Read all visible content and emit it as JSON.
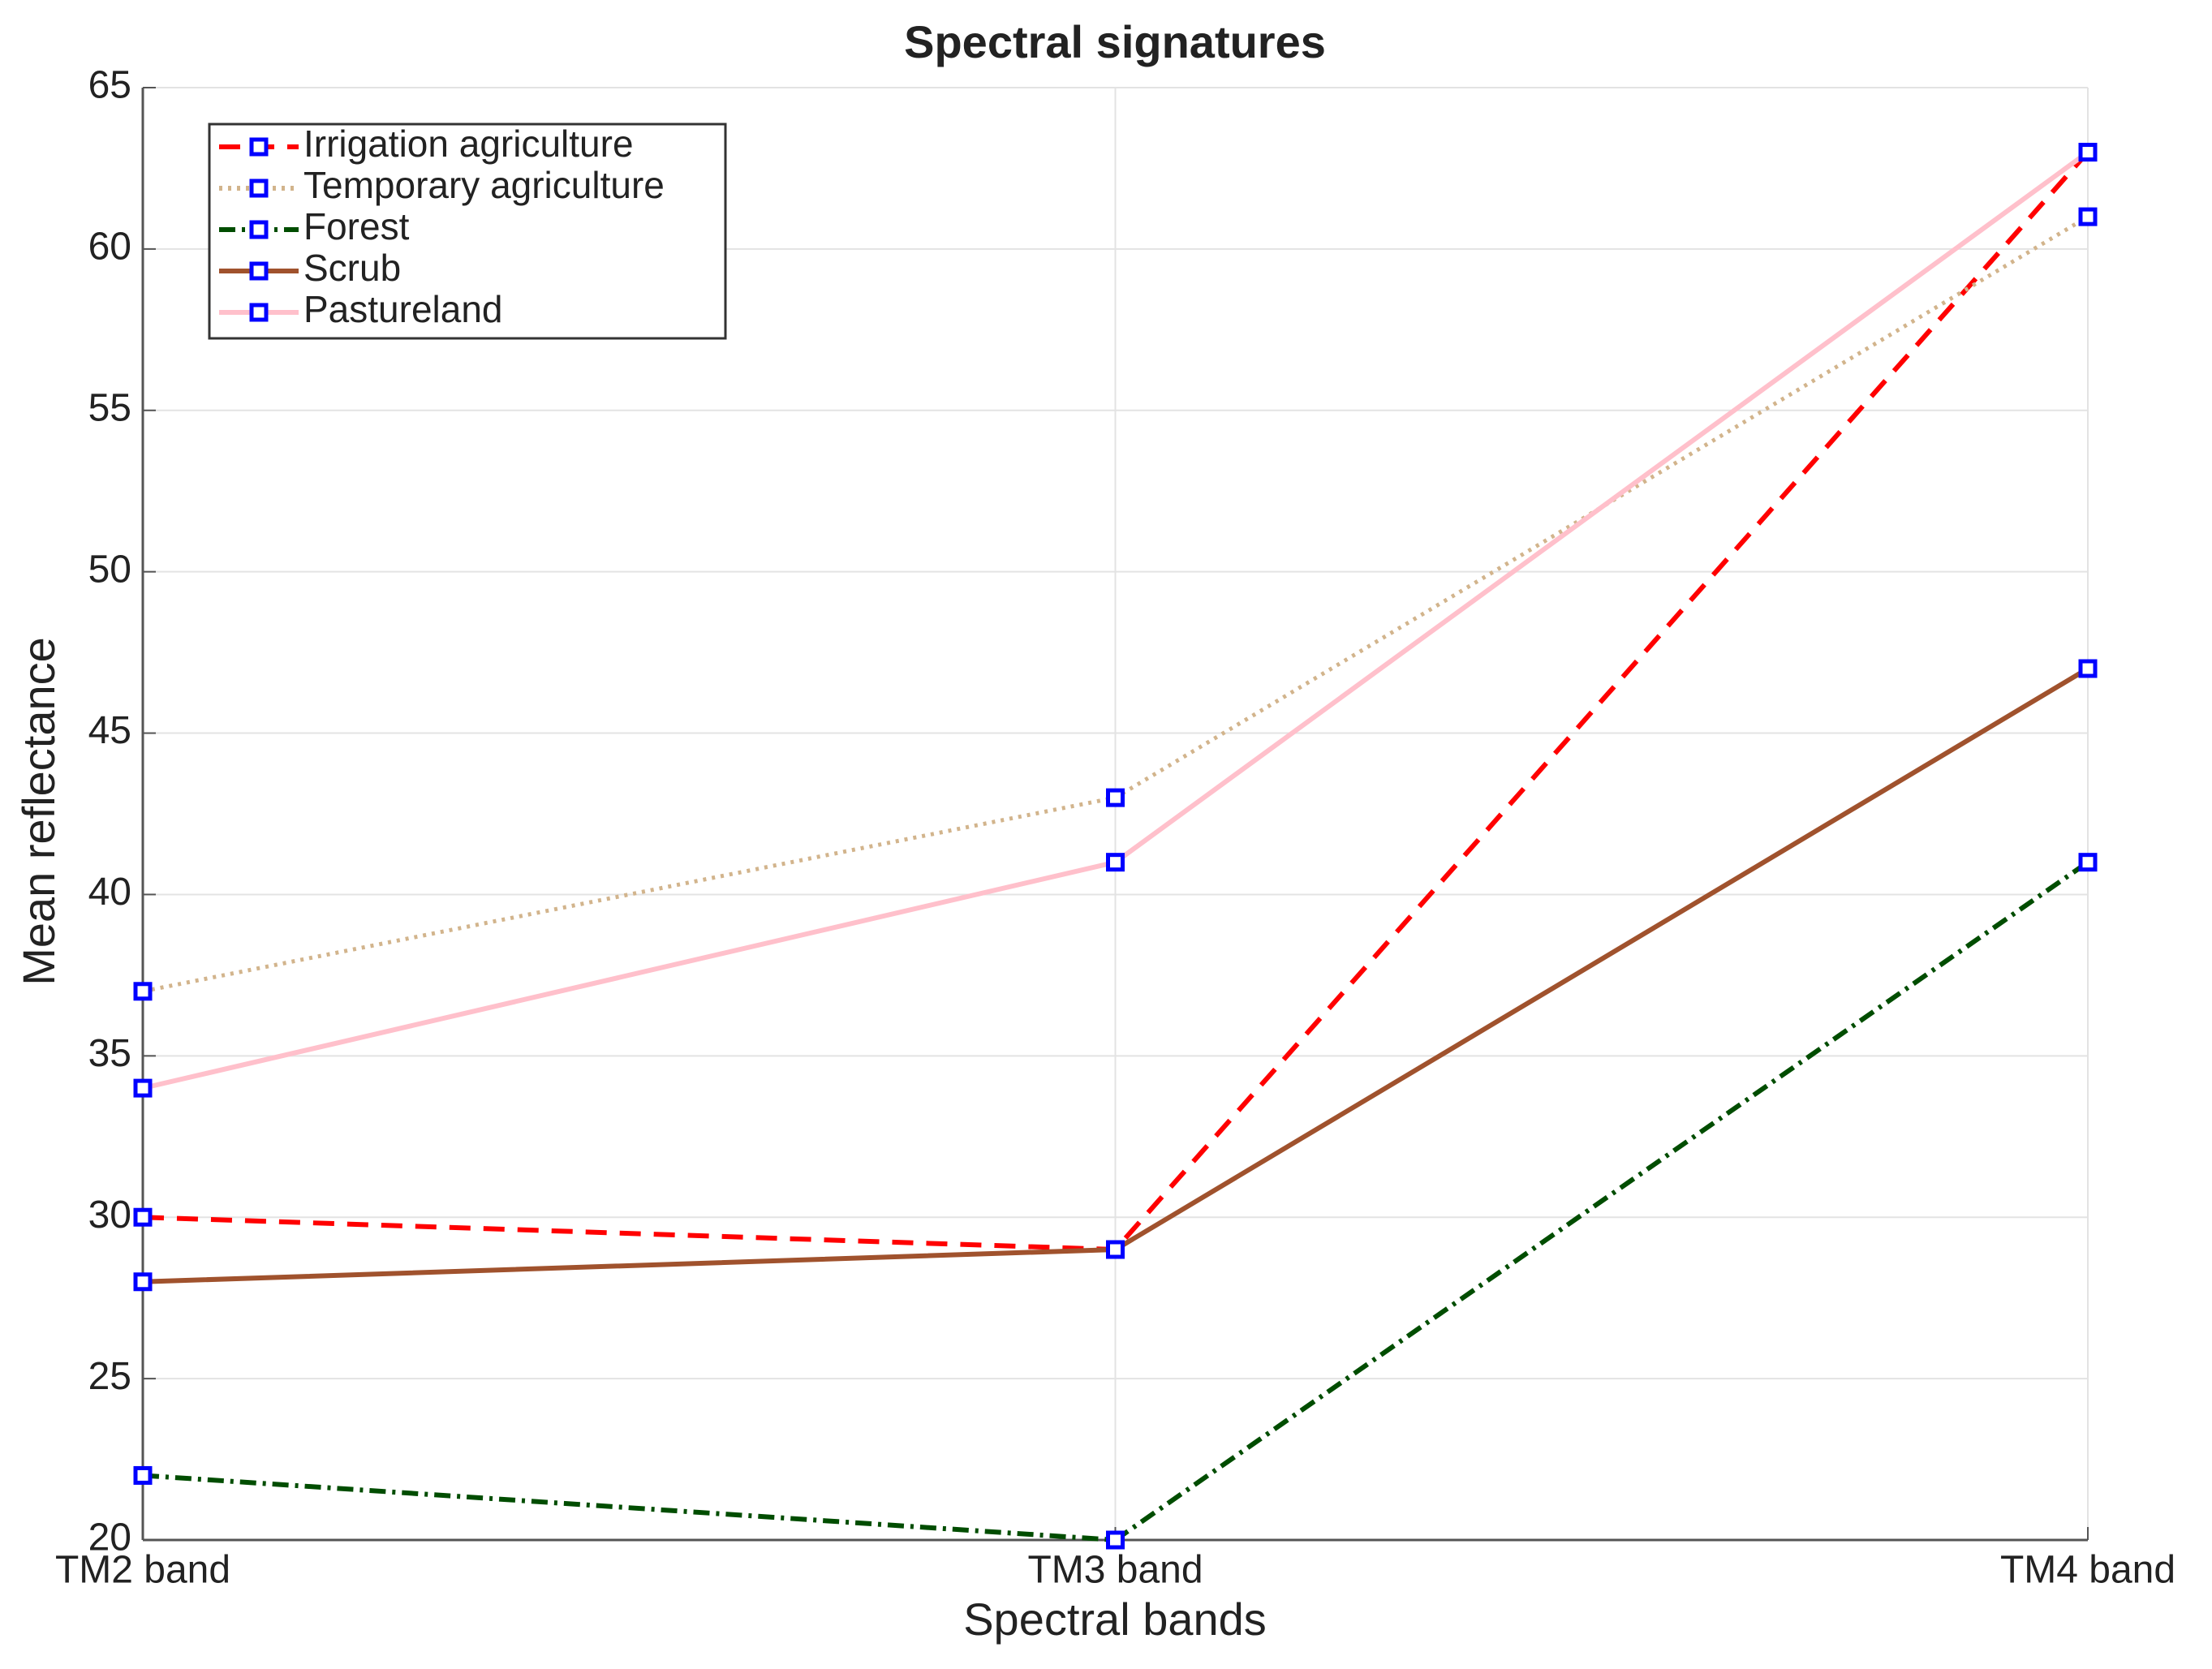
{
  "chart_data": {
    "type": "line",
    "title": "Spectral signatures",
    "x_label": "Spectral bands",
    "y_label": "Mean reflectance",
    "categories": [
      "TM2 band",
      "TM3 band",
      "TM4 band"
    ],
    "series": [
      {
        "name": "Irrigation agriculture",
        "color": "#ff0000",
        "dash": "dashed",
        "values": [
          30,
          29,
          63
        ]
      },
      {
        "name": "Temporary agriculture",
        "color": "#d2b48c",
        "dash": "dotted",
        "values": [
          37,
          43,
          61
        ]
      },
      {
        "name": "Forest",
        "color": "#004d00",
        "dash": "dashdot",
        "values": [
          22,
          20,
          41
        ]
      },
      {
        "name": "Scrub",
        "color": "#a0522d",
        "dash": "solid",
        "values": [
          28,
          29,
          47
        ]
      },
      {
        "name": "Pastureland",
        "color": "#ffc0cb",
        "dash": "solid",
        "values": [
          34,
          41,
          63
        ]
      }
    ],
    "marker_color": "#0000ff",
    "ylim": [
      20,
      65
    ],
    "yticks": [
      20,
      25,
      30,
      35,
      40,
      45,
      50,
      55,
      60,
      65
    ],
    "grid": true,
    "legend": "upper left"
  }
}
